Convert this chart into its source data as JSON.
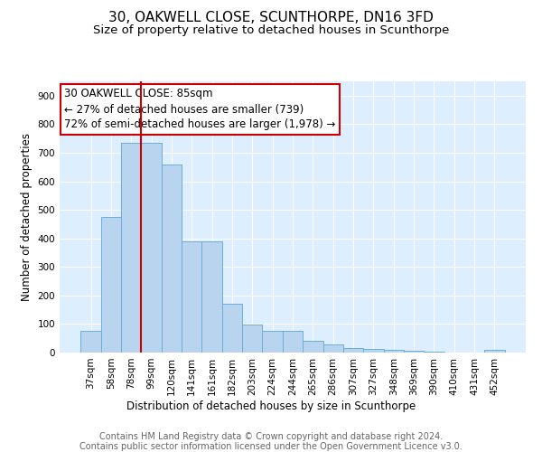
{
  "title1": "30, OAKWELL CLOSE, SCUNTHORPE, DN16 3FD",
  "title2": "Size of property relative to detached houses in Scunthorpe",
  "xlabel": "Distribution of detached houses by size in Scunthorpe",
  "ylabel": "Number of detached properties",
  "categories": [
    "37sqm",
    "58sqm",
    "78sqm",
    "99sqm",
    "120sqm",
    "141sqm",
    "161sqm",
    "182sqm",
    "203sqm",
    "224sqm",
    "244sqm",
    "265sqm",
    "286sqm",
    "307sqm",
    "327sqm",
    "348sqm",
    "369sqm",
    "390sqm",
    "410sqm",
    "431sqm",
    "452sqm"
  ],
  "values": [
    75,
    475,
    735,
    735,
    660,
    390,
    390,
    170,
    97,
    75,
    75,
    42,
    30,
    15,
    13,
    11,
    6,
    2,
    1,
    1,
    8
  ],
  "bar_color": "#b8d4ee",
  "bar_edge_color": "#6baed6",
  "vline_color": "#cc0000",
  "annotation_text": "30 OAKWELL CLOSE: 85sqm\n← 27% of detached houses are smaller (739)\n72% of semi-detached houses are larger (1,978) →",
  "annotation_box_color": "#ffffff",
  "annotation_box_edge_color": "#cc0000",
  "ylim": [
    0,
    950
  ],
  "yticks": [
    0,
    100,
    200,
    300,
    400,
    500,
    600,
    700,
    800,
    900
  ],
  "footnote1": "Contains HM Land Registry data © Crown copyright and database right 2024.",
  "footnote2": "Contains public sector information licensed under the Open Government Licence v3.0.",
  "bg_color": "#ddeeff",
  "grid_color": "#ffffff",
  "title1_fontsize": 11,
  "title2_fontsize": 9.5,
  "axis_label_fontsize": 8.5,
  "tick_fontsize": 7.5,
  "annotation_fontsize": 8.5,
  "footnote_fontsize": 7,
  "footnote_color": "#666666"
}
